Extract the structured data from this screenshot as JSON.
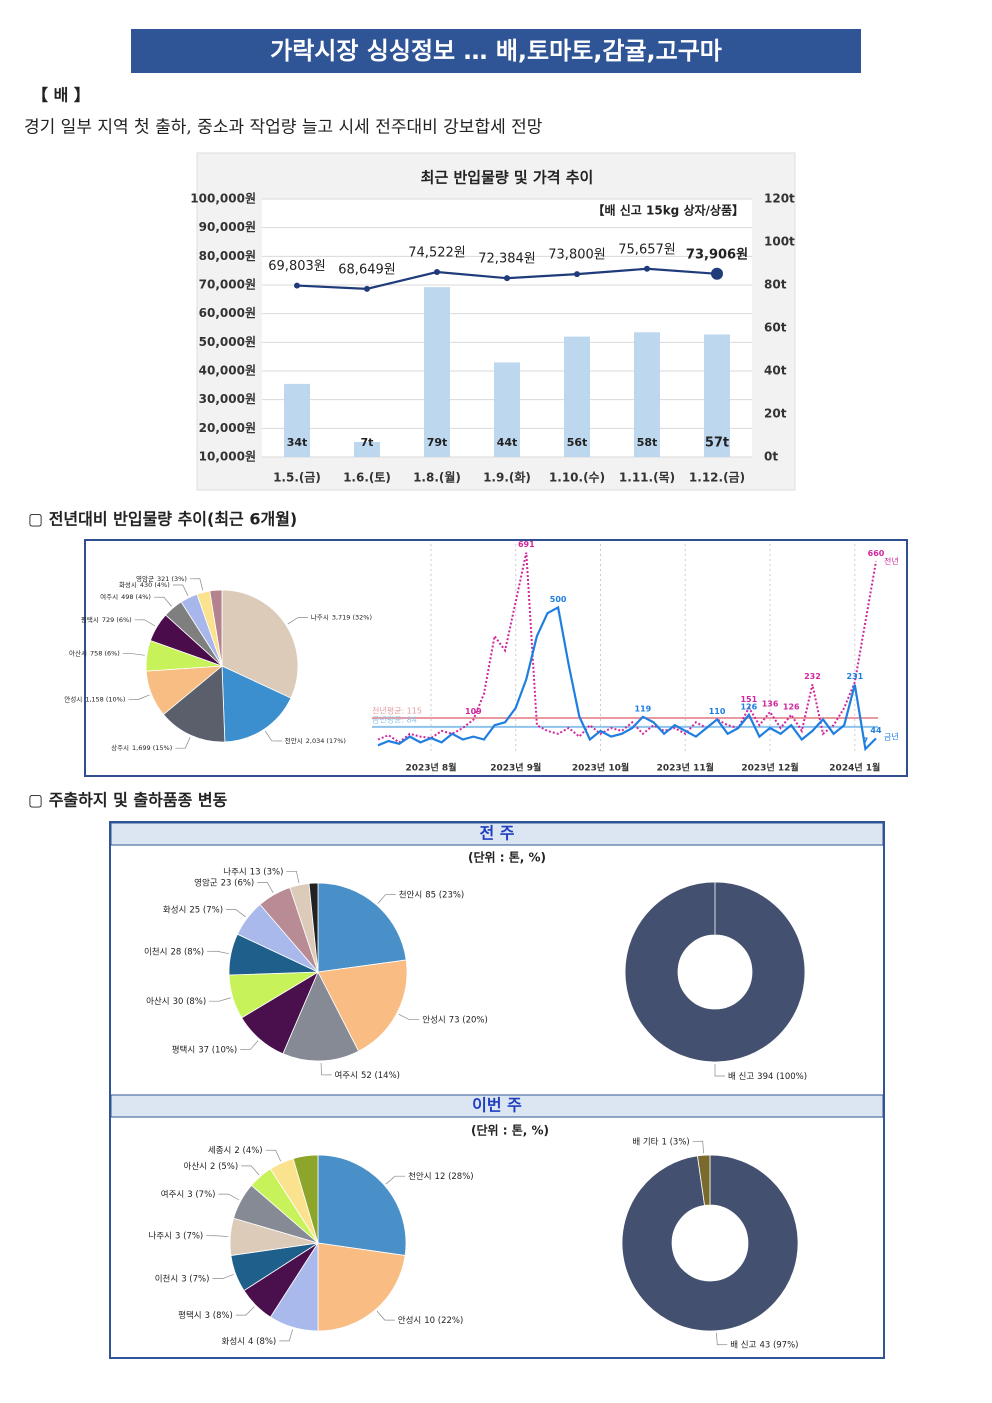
{
  "header": {
    "title": "가락시장 싱싱정보 … 배,토마토,감귤,고구마"
  },
  "section": {
    "heading": "【 배 】",
    "summary": "경기 일부 지역 첫 출하, 중소과 작업량 늘고 시세 전주대비 강보합세 전망"
  },
  "headings": [
    "▢ 전년대비 반입물량 추이(최근 6개월)",
    "▢ 주출하지 및 출하품종 변동"
  ],
  "panels": [
    {
      "title": "전 주",
      "subtitle": "(단위 : 톤, %)"
    },
    {
      "title": "이번 주",
      "subtitle": "(단위 : 톤, %)"
    }
  ],
  "chart_data": [
    {
      "type": "combo",
      "title": "최근 반입물량 및 가격 추이",
      "note": "【배 신고 15kg 상자/상품】",
      "categories": [
        "1.5.(금)",
        "1.6.(토)",
        "1.8.(월)",
        "1.9.(화)",
        "1.10.(수)",
        "1.11.(목)",
        "1.12.(금)"
      ],
      "ylim": [
        10000,
        100000
      ],
      "yticks": [
        {
          "value": 10000,
          "label": "10,000원"
        },
        {
          "value": 20000,
          "label": "20,000원"
        },
        {
          "value": 30000,
          "label": "30,000원"
        },
        {
          "value": 40000,
          "label": "40,000원"
        },
        {
          "value": 50000,
          "label": "50,000원"
        },
        {
          "value": 60000,
          "label": "60,000원"
        },
        {
          "value": 70000,
          "label": "70,000원"
        },
        {
          "value": 80000,
          "label": "80,000원"
        },
        {
          "value": 90000,
          "label": "90,000원"
        },
        {
          "value": 100000,
          "label": "100,000원"
        }
      ],
      "y2lim": [
        0,
        120
      ],
      "y2ticks": [
        {
          "value": 0,
          "label": "0t"
        },
        {
          "value": 20,
          "label": "20t"
        },
        {
          "value": 40,
          "label": "40t"
        },
        {
          "value": 60,
          "label": "60t"
        },
        {
          "value": 80,
          "label": "80t"
        },
        {
          "value": 100,
          "label": "100t"
        },
        {
          "value": 120,
          "label": "120t"
        }
      ],
      "grid": true,
      "series": [
        {
          "type": "bar",
          "axis": "y2",
          "color": "#bdd7ee",
          "values": [
            34,
            7,
            79,
            44,
            56,
            58,
            57
          ],
          "value_labels": [
            "34t",
            "7t",
            "79t",
            "44t",
            "56t",
            "58t",
            "57t"
          ]
        },
        {
          "type": "line",
          "color": "#1f3b7a",
          "values": [
            69803,
            68649,
            74522,
            72384,
            73800,
            75657,
            73906
          ],
          "value_labels": [
            "69,803원",
            "68,649원",
            "74,522원",
            "72,384원",
            "73,800원",
            "75,657원",
            "73,906원"
          ]
        }
      ]
    },
    {
      "type": "pie",
      "categories": [
        "나주시",
        "천안시",
        "상주시",
        "안성시",
        "아산시",
        "평택시",
        "여주시",
        "화성시",
        "영암군",
        null
      ],
      "values": [
        3719,
        2034,
        1699,
        1158,
        758,
        729,
        498,
        430,
        321,
        300
      ],
      "value_labels": [
        "3,719 (32%)",
        "2,034 (17%)",
        "1,699 (15%)",
        "1,158 (10%)",
        "758 (6%)",
        "729 (6%)",
        "498 (4%)",
        "430 (4%)",
        "321 (3%)",
        null
      ],
      "colors": [
        "#dccbb9",
        "#3c8fcf",
        "#5a5f6b",
        "#f8bd83",
        "#c8f25a",
        "#4b0c4b",
        "#7f7f7f",
        "#a7b6eb",
        "#fbe28f",
        "#b5838f"
      ]
    },
    {
      "type": "line",
      "categories": [
        null,
        null,
        null,
        null,
        null,
        "2023년 8월",
        null,
        null,
        null,
        null,
        null,
        null,
        null,
        "2023년 9월",
        null,
        null,
        null,
        null,
        null,
        null,
        null,
        "2023년 10월",
        null,
        null,
        null,
        null,
        null,
        null,
        null,
        "2023년 11월",
        null,
        null,
        null,
        null,
        null,
        null,
        null,
        "2023년 12월",
        null,
        null,
        null,
        null,
        null,
        null,
        null,
        "2024년 1월",
        null,
        null
      ],
      "ylim": [
        0,
        700
      ],
      "series": [
        {
          "name": "전년",
          "color": "#d0279c",
          "values": [
            40,
            55,
            30,
            60,
            50,
            45,
            70,
            60,
            80,
            109,
            200,
            400,
            350,
            520,
            691,
            90,
            70,
            60,
            80,
            50,
            90,
            60,
            80,
            70,
            100,
            60,
            90,
            70,
            80,
            60,
            100,
            80,
            110,
            90,
            80,
            151,
            90,
            136,
            80,
            126,
            70,
            232,
            60,
            90,
            150,
            240,
            450,
            660
          ]
        },
        {
          "name": "금년",
          "color": "#1f7fe0",
          "values": [
            20,
            35,
            25,
            50,
            30,
            45,
            30,
            60,
            40,
            50,
            40,
            90,
            100,
            150,
            250,
            400,
            480,
            500,
            300,
            120,
            40,
            70,
            50,
            60,
            80,
            119,
            100,
            60,
            90,
            70,
            50,
            80,
            110,
            60,
            80,
            126,
            50,
            80,
            60,
            90,
            40,
            70,
            110,
            60,
            90,
            231,
            7,
            44
          ]
        }
      ],
      "reference_lines": [
        {
          "label": "전년평균: 115",
          "value": 115,
          "color": "#e89aa0"
        },
        {
          "label": "금년평균: 84",
          "value": 84,
          "color": "#8ec3ec"
        }
      ]
    },
    {
      "type": "pie",
      "categories": [
        "천안시",
        "안성시",
        "여주시",
        "평택시",
        "아산시",
        "이천시",
        "화성시",
        "영암군",
        "나주시",
        null
      ],
      "values": [
        85,
        73,
        52,
        37,
        30,
        28,
        25,
        23,
        13,
        6
      ],
      "value_labels": [
        "85 (23%)",
        "73 (20%)",
        "52 (14%)",
        "37 (10%)",
        "30 (8%)",
        "28 (8%)",
        "25 (7%)",
        "23 (6%)",
        "13 (3%)",
        null
      ],
      "colors": [
        "#4a90c8",
        "#f9bd83",
        "#868a94",
        "#4a0f4d",
        "#c8f25a",
        "#1f5f8b",
        "#a9b9ec",
        "#b98b94",
        "#ddcbb9",
        "#222222"
      ]
    },
    {
      "type": "donut",
      "categories": [
        "배 신고"
      ],
      "values": [
        394
      ],
      "value_labels": [
        "394 (100%)"
      ],
      "colors": [
        "#44506f"
      ]
    },
    {
      "type": "pie",
      "categories": [
        "천안시",
        "안성시",
        "화성시",
        "평택시",
        "이천시",
        "나주시",
        "여주시",
        "아산시",
        "세종시",
        null
      ],
      "values": [
        12,
        10,
        4,
        3,
        3,
        3,
        3,
        2,
        2,
        2
      ],
      "value_labels": [
        "12 (28%)",
        "10 (22%)",
        "4 (8%)",
        "3 (8%)",
        "3 (7%)",
        "3 (7%)",
        "3 (7%)",
        "2 (5%)",
        "2 (4%)",
        null
      ],
      "colors": [
        "#4a90c8",
        "#f9bd83",
        "#a9b9ec",
        "#4a0f4d",
        "#1f5f8b",
        "#ddcbb9",
        "#868a94",
        "#c8f25a",
        "#fbe28f",
        "#8ca52a"
      ]
    },
    {
      "type": "donut",
      "categories": [
        "배 신고",
        "배 기타"
      ],
      "values": [
        43,
        1
      ],
      "value_labels": [
        "43 (97%)",
        "1 (3%)"
      ],
      "colors": [
        "#44506f",
        "#7a6a2e"
      ]
    }
  ]
}
